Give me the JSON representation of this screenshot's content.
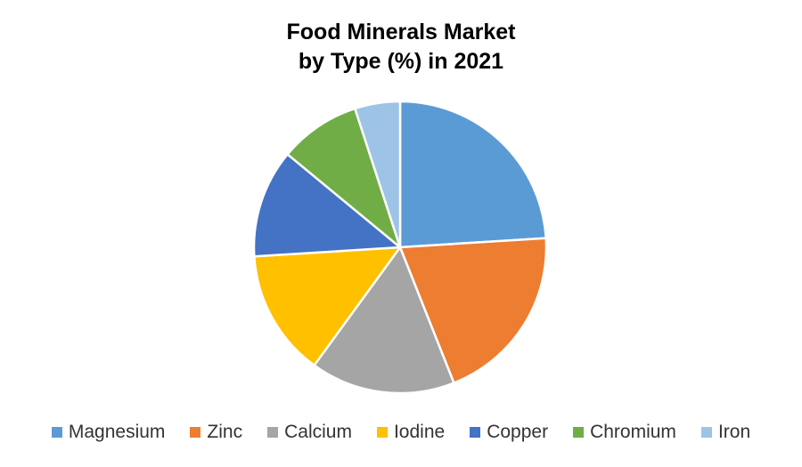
{
  "title": {
    "line1": "Food Minerals Market",
    "line2": "by Type (%) in 2021"
  },
  "chart_data": {
    "type": "pie",
    "title": "Food Minerals Market by Type (%) in 2021",
    "categories": [
      "Magnesium",
      "Zinc",
      "Calcium",
      "Iodine",
      "Copper",
      "Chromium",
      "Iron"
    ],
    "values": [
      24,
      20,
      16,
      14,
      12,
      9,
      5
    ],
    "unit": "%",
    "colors": [
      "#5B9BD5",
      "#ED7D31",
      "#A5A5A5",
      "#FFC000",
      "#4472C4",
      "#70AD47",
      "#9DC3E6"
    ],
    "start_angle_deg": 0,
    "direction": "clockwise",
    "slice_border_color": "#FFFFFF",
    "legend_position": "bottom",
    "data_labels": false
  }
}
